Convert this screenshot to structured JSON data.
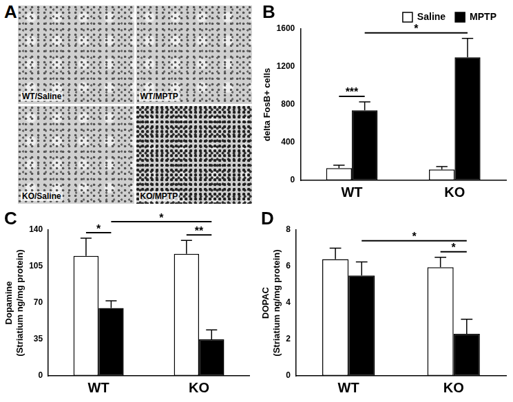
{
  "image_panel": {
    "label": "A",
    "images": [
      "WT/Saline",
      "WT/MPTP",
      "KO/Saline",
      "KO/MPTP"
    ]
  },
  "chart_data": [
    {
      "panel": "B",
      "type": "bar",
      "categories": [
        "WT",
        "KO"
      ],
      "y_label": "delta FosB+ cells",
      "ylim": [
        0,
        1600
      ],
      "yticks": [
        0,
        400,
        800,
        1200,
        1600
      ],
      "grid": false,
      "legend": "upper right",
      "series": [
        {
          "name": "Saline",
          "color": "#ffffff",
          "values": [
            130,
            115
          ],
          "errors": [
            30,
            30
          ]
        },
        {
          "name": "MPTP",
          "color": "#000000",
          "values": [
            740,
            1300
          ],
          "errors": [
            90,
            200
          ]
        }
      ],
      "annotations": [
        {
          "text": "***",
          "from": [
            "WT",
            "Saline"
          ],
          "to": [
            "WT",
            "MPTP"
          ]
        },
        {
          "text": "*",
          "from": [
            "WT",
            "MPTP"
          ],
          "to": [
            "KO",
            "MPTP"
          ]
        }
      ]
    },
    {
      "panel": "C",
      "type": "bar",
      "categories": [
        "WT",
        "KO"
      ],
      "y_label": [
        "Dopamine",
        "(Striatium ng/mg protein)"
      ],
      "ylim": [
        0,
        140
      ],
      "yticks": [
        0,
        35,
        70,
        105,
        140
      ],
      "grid": false,
      "series": [
        {
          "name": "Saline",
          "color": "#ffffff",
          "values": [
            115,
            117
          ],
          "errors": [
            17,
            13
          ]
        },
        {
          "name": "MPTP",
          "color": "#000000",
          "values": [
            65,
            35
          ],
          "errors": [
            7,
            9
          ]
        }
      ],
      "annotations": [
        {
          "text": "*",
          "from": [
            "WT",
            "Saline"
          ],
          "to": [
            "WT",
            "MPTP"
          ]
        },
        {
          "text": "**",
          "from": [
            "KO",
            "Saline"
          ],
          "to": [
            "KO",
            "MPTP"
          ]
        },
        {
          "text": "*",
          "from": [
            "WT",
            "MPTP"
          ],
          "to": [
            "KO",
            "MPTP"
          ]
        }
      ]
    },
    {
      "panel": "D",
      "type": "bar",
      "categories": [
        "WT",
        "KO"
      ],
      "y_label": [
        "DOPAC",
        "(Striatium ng/mg protein)"
      ],
      "ylim": [
        0,
        8
      ],
      "yticks": [
        0,
        2,
        4,
        6,
        8
      ],
      "grid": false,
      "series": [
        {
          "name": "Saline",
          "color": "#ffffff",
          "values": [
            6.4,
            5.95
          ],
          "errors": [
            0.6,
            0.55
          ]
        },
        {
          "name": "MPTP",
          "color": "#000000",
          "values": [
            5.5,
            2.3
          ],
          "errors": [
            0.75,
            0.8
          ]
        }
      ],
      "annotations": [
        {
          "text": "*",
          "from": [
            "KO",
            "Saline"
          ],
          "to": [
            "KO",
            "MPTP"
          ]
        },
        {
          "text": "*",
          "from": [
            "WT",
            "MPTP"
          ],
          "to": [
            "KO",
            "MPTP"
          ]
        }
      ]
    }
  ]
}
